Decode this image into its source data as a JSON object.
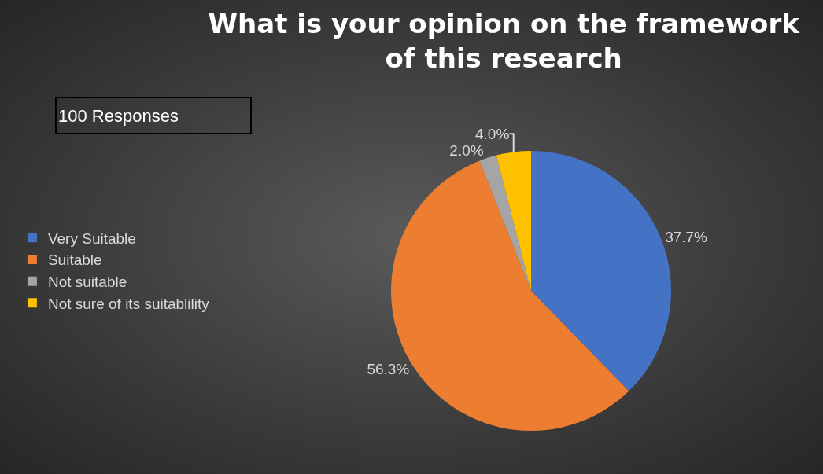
{
  "chart_data": {
    "type": "pie",
    "title": "What is your opinion on the framework of this research",
    "categories": [
      "Very Suitable",
      "Suitable",
      "Not suitable",
      "Not sure of its suitablility"
    ],
    "values": [
      37.7,
      56.3,
      2.0,
      4.0
    ],
    "colors": [
      "#4472c4",
      "#ed7d31",
      "#a5a5a5",
      "#ffc000"
    ],
    "value_labels": [
      "37.7%",
      "56.3%",
      "2.0%",
      "4.0%"
    ],
    "legend": "left",
    "annotations": [
      "100 Responses"
    ]
  }
}
